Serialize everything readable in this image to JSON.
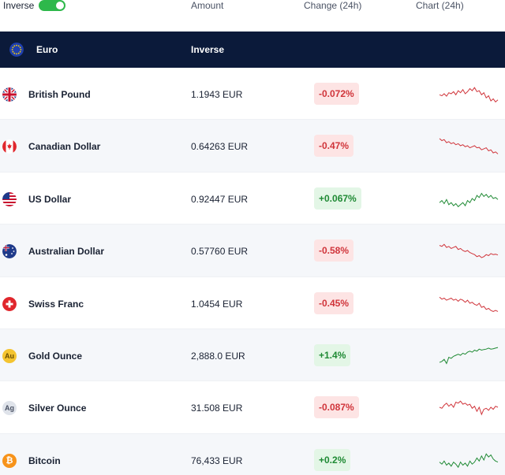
{
  "toolbar": {
    "inverse_label": "Inverse",
    "inverse_on": true,
    "col_amount": "Amount",
    "col_change": "Change (24h)",
    "col_chart": "Chart (24h)"
  },
  "base": {
    "name": "Euro",
    "mode_label": "Inverse",
    "flag_icon": "eu-flag-icon"
  },
  "colors": {
    "header_bg": "#0b1a3a",
    "negative": "#d0343a",
    "positive": "#1f8a34",
    "toggle_on": "#2eb84b"
  },
  "rows": [
    {
      "name": "British Pound",
      "amount": "1.1943 EUR",
      "change": "-0.072%",
      "direction": "down",
      "icon": "uk-flag-icon",
      "spark": [
        0.55,
        0.6,
        0.5,
        0.62,
        0.45,
        0.5,
        0.4,
        0.55,
        0.35,
        0.45,
        0.3,
        0.5,
        0.4,
        0.25,
        0.35,
        0.2,
        0.4,
        0.35,
        0.55,
        0.45,
        0.7,
        0.6,
        0.85,
        0.75,
        0.9,
        0.8
      ]
    },
    {
      "name": "Canadian Dollar",
      "amount": "0.64263 EUR",
      "change": "-0.47%",
      "direction": "down",
      "icon": "canada-flag-icon",
      "spark": [
        0.15,
        0.25,
        0.2,
        0.35,
        0.3,
        0.4,
        0.35,
        0.45,
        0.4,
        0.5,
        0.45,
        0.55,
        0.5,
        0.6,
        0.55,
        0.5,
        0.6,
        0.58,
        0.7,
        0.65,
        0.6,
        0.75,
        0.7,
        0.85,
        0.8,
        0.9
      ]
    },
    {
      "name": "US Dollar",
      "amount": "0.92447 EUR",
      "change": "+0.067%",
      "direction": "up",
      "icon": "us-flag-icon",
      "spark": [
        0.7,
        0.6,
        0.75,
        0.55,
        0.8,
        0.7,
        0.85,
        0.75,
        0.9,
        0.8,
        0.7,
        0.85,
        0.6,
        0.7,
        0.5,
        0.6,
        0.35,
        0.45,
        0.25,
        0.4,
        0.3,
        0.45,
        0.35,
        0.5,
        0.45,
        0.55
      ]
    },
    {
      "name": "Australian Dollar",
      "amount": "0.57760 EUR",
      "change": "-0.58%",
      "direction": "down",
      "icon": "australia-flag-icon",
      "spark": [
        0.25,
        0.3,
        0.2,
        0.35,
        0.3,
        0.4,
        0.35,
        0.3,
        0.45,
        0.4,
        0.5,
        0.55,
        0.5,
        0.6,
        0.65,
        0.7,
        0.8,
        0.75,
        0.85,
        0.8,
        0.7,
        0.75,
        0.65,
        0.7,
        0.68,
        0.72
      ]
    },
    {
      "name": "Swiss Franc",
      "amount": "1.0454 EUR",
      "change": "-0.45%",
      "direction": "down",
      "icon": "swiss-flag-icon",
      "spark": [
        0.2,
        0.3,
        0.25,
        0.35,
        0.3,
        0.25,
        0.35,
        0.3,
        0.4,
        0.3,
        0.35,
        0.45,
        0.35,
        0.5,
        0.45,
        0.55,
        0.6,
        0.5,
        0.7,
        0.65,
        0.8,
        0.75,
        0.85,
        0.9,
        0.85,
        0.9
      ]
    },
    {
      "name": "Gold Ounce",
      "amount": "2,888.0 EUR",
      "change": "+1.4%",
      "direction": "up",
      "icon": "gold-ounce-icon",
      "badge_text": "Au",
      "spark": [
        0.85,
        0.8,
        0.7,
        0.9,
        0.6,
        0.65,
        0.55,
        0.5,
        0.45,
        0.5,
        0.4,
        0.45,
        0.35,
        0.3,
        0.35,
        0.25,
        0.3,
        0.2,
        0.25,
        0.22,
        0.2,
        0.15,
        0.2,
        0.18,
        0.15,
        0.12
      ]
    },
    {
      "name": "Silver Ounce",
      "amount": "31.508 EUR",
      "change": "-0.087%",
      "direction": "down",
      "icon": "silver-ounce-icon",
      "badge_text": "Ag",
      "spark": [
        0.5,
        0.55,
        0.4,
        0.3,
        0.45,
        0.35,
        0.5,
        0.25,
        0.3,
        0.2,
        0.35,
        0.3,
        0.4,
        0.35,
        0.55,
        0.45,
        0.7,
        0.5,
        0.85,
        0.6,
        0.55,
        0.65,
        0.5,
        0.6,
        0.45,
        0.5
      ]
    },
    {
      "name": "Bitcoin",
      "amount": "76,433 EUR",
      "change": "+0.2%",
      "direction": "up",
      "icon": "bitcoin-icon",
      "badge_text": "₿",
      "spark": [
        0.6,
        0.7,
        0.55,
        0.75,
        0.65,
        0.8,
        0.6,
        0.7,
        0.85,
        0.6,
        0.75,
        0.65,
        0.8,
        0.55,
        0.7,
        0.6,
        0.4,
        0.55,
        0.3,
        0.5,
        0.2,
        0.35,
        0.25,
        0.45,
        0.55,
        0.6
      ]
    }
  ]
}
